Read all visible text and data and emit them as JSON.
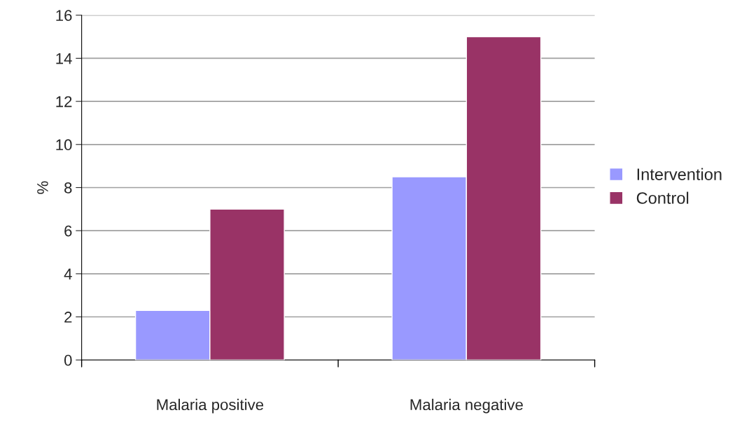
{
  "chart_data": {
    "type": "bar",
    "ylabel": "%",
    "categories": [
      "Malaria positive",
      "Malaria negative"
    ],
    "series": [
      {
        "name": "Intervention",
        "color": "#9999ff",
        "values": [
          2.3,
          8.5
        ]
      },
      {
        "name": "Control",
        "color": "#993366",
        "values": [
          7,
          15
        ]
      }
    ],
    "ylim": [
      0,
      16
    ],
    "yticks": [
      0,
      2,
      4,
      6,
      8,
      10,
      12,
      14,
      16
    ],
    "grid": "y",
    "legend": "right"
  }
}
